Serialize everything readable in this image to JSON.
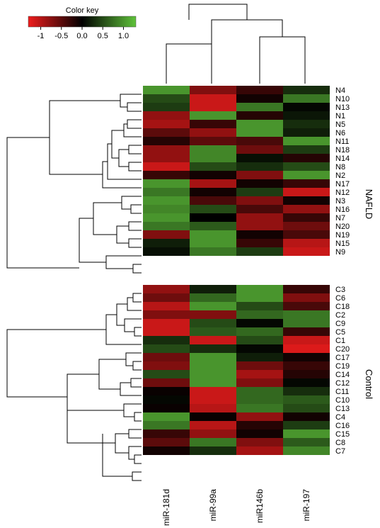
{
  "chart_data": {
    "type": "heatmap",
    "color_key": {
      "title": "Color key",
      "ticks": [
        "-1",
        "-0.5",
        "0.0",
        "0.5",
        "1.0"
      ],
      "tick_values": [
        -1,
        -0.5,
        0,
        0.5,
        1
      ],
      "range": [
        -1.3,
        1.3
      ],
      "colors": {
        "low": "#ee1c1c",
        "mid": "#000000",
        "high": "#5fc23a"
      }
    },
    "columns": [
      "miR-181d",
      "miR-99a",
      "miR146b",
      "miR-197"
    ],
    "groups": [
      {
        "name": "NAFLD",
        "rows": [
          "N4",
          "N10",
          "N13",
          "N1",
          "N5",
          "N6",
          "N11",
          "N18",
          "N14",
          "N8",
          "N2",
          "N17",
          "N12",
          "N3",
          "N16",
          "N7",
          "N20",
          "N19",
          "N15",
          "N9"
        ],
        "values": [
          [
            1.0,
            -0.7,
            -0.3,
            0.3
          ],
          [
            0.5,
            -1.1,
            -0.1,
            0.8
          ],
          [
            0.4,
            -1.1,
            0.8,
            0.05
          ],
          [
            -0.8,
            1.0,
            -0.2,
            0.15
          ],
          [
            -0.9,
            -0.3,
            1.0,
            0.3
          ],
          [
            -0.5,
            -0.8,
            1.0,
            0.2
          ],
          [
            -0.2,
            -0.5,
            -0.4,
            1.0
          ],
          [
            -0.8,
            0.9,
            -0.6,
            0.4
          ],
          [
            -0.8,
            0.9,
            0.1,
            -0.2
          ],
          [
            -1.1,
            0.5,
            0.3,
            0.5
          ],
          [
            -0.3,
            -0.1,
            -0.7,
            1.0
          ],
          [
            1.0,
            -0.9,
            -0.1,
            -0.3
          ],
          [
            0.8,
            -0.1,
            0.4,
            -1.1
          ],
          [
            1.0,
            -0.4,
            -0.7,
            -0.1
          ],
          [
            0.9,
            0.5,
            -0.4,
            -0.8
          ],
          [
            1.0,
            0.0,
            -0.8,
            -0.3
          ],
          [
            0.8,
            0.6,
            -0.8,
            -0.6
          ],
          [
            -0.7,
            1.0,
            -0.1,
            -0.4
          ],
          [
            0.2,
            1.0,
            -0.3,
            -1.0
          ],
          [
            0.1,
            0.8,
            0.4,
            -1.1
          ]
        ]
      },
      {
        "name": "Control",
        "rows": [
          "C3",
          "C6",
          "C18",
          "C2",
          "C9",
          "C5",
          "C1",
          "C20",
          "C17",
          "C19",
          "C14",
          "C12",
          "C11",
          "C10",
          "C13",
          "C4",
          "C16",
          "C15",
          "C8",
          "C7"
        ],
        "values": [
          [
            -0.8,
            0.2,
            1.0,
            -0.3
          ],
          [
            -0.6,
            0.7,
            1.0,
            -0.7
          ],
          [
            -1.0,
            1.0,
            0.5,
            -0.4
          ],
          [
            -0.7,
            -0.7,
            0.7,
            0.8
          ],
          [
            -1.1,
            0.5,
            0.05,
            0.8
          ],
          [
            -1.1,
            0.6,
            0.7,
            -0.3
          ],
          [
            0.3,
            -1.1,
            0.5,
            -1.1
          ],
          [
            0.5,
            0.3,
            0.05,
            -1.2
          ],
          [
            -0.6,
            1.0,
            0.2,
            -0.1
          ],
          [
            -0.7,
            1.0,
            -0.6,
            -0.3
          ],
          [
            0.5,
            1.0,
            -0.9,
            -0.2
          ],
          [
            -0.6,
            1.0,
            -0.7,
            0.05
          ],
          [
            -0.05,
            -1.1,
            0.7,
            0.3
          ],
          [
            0.05,
            -1.1,
            0.7,
            0.6
          ],
          [
            -0.05,
            -1.0,
            0.8,
            0.5
          ],
          [
            1.0,
            -0.05,
            -0.8,
            -0.1
          ],
          [
            0.8,
            -1.0,
            -0.2,
            0.4
          ],
          [
            -0.3,
            -0.8,
            -0.1,
            1.0
          ],
          [
            -0.5,
            0.8,
            -0.7,
            0.6
          ],
          [
            -0.1,
            0.3,
            -0.9,
            0.9
          ]
        ]
      }
    ]
  }
}
